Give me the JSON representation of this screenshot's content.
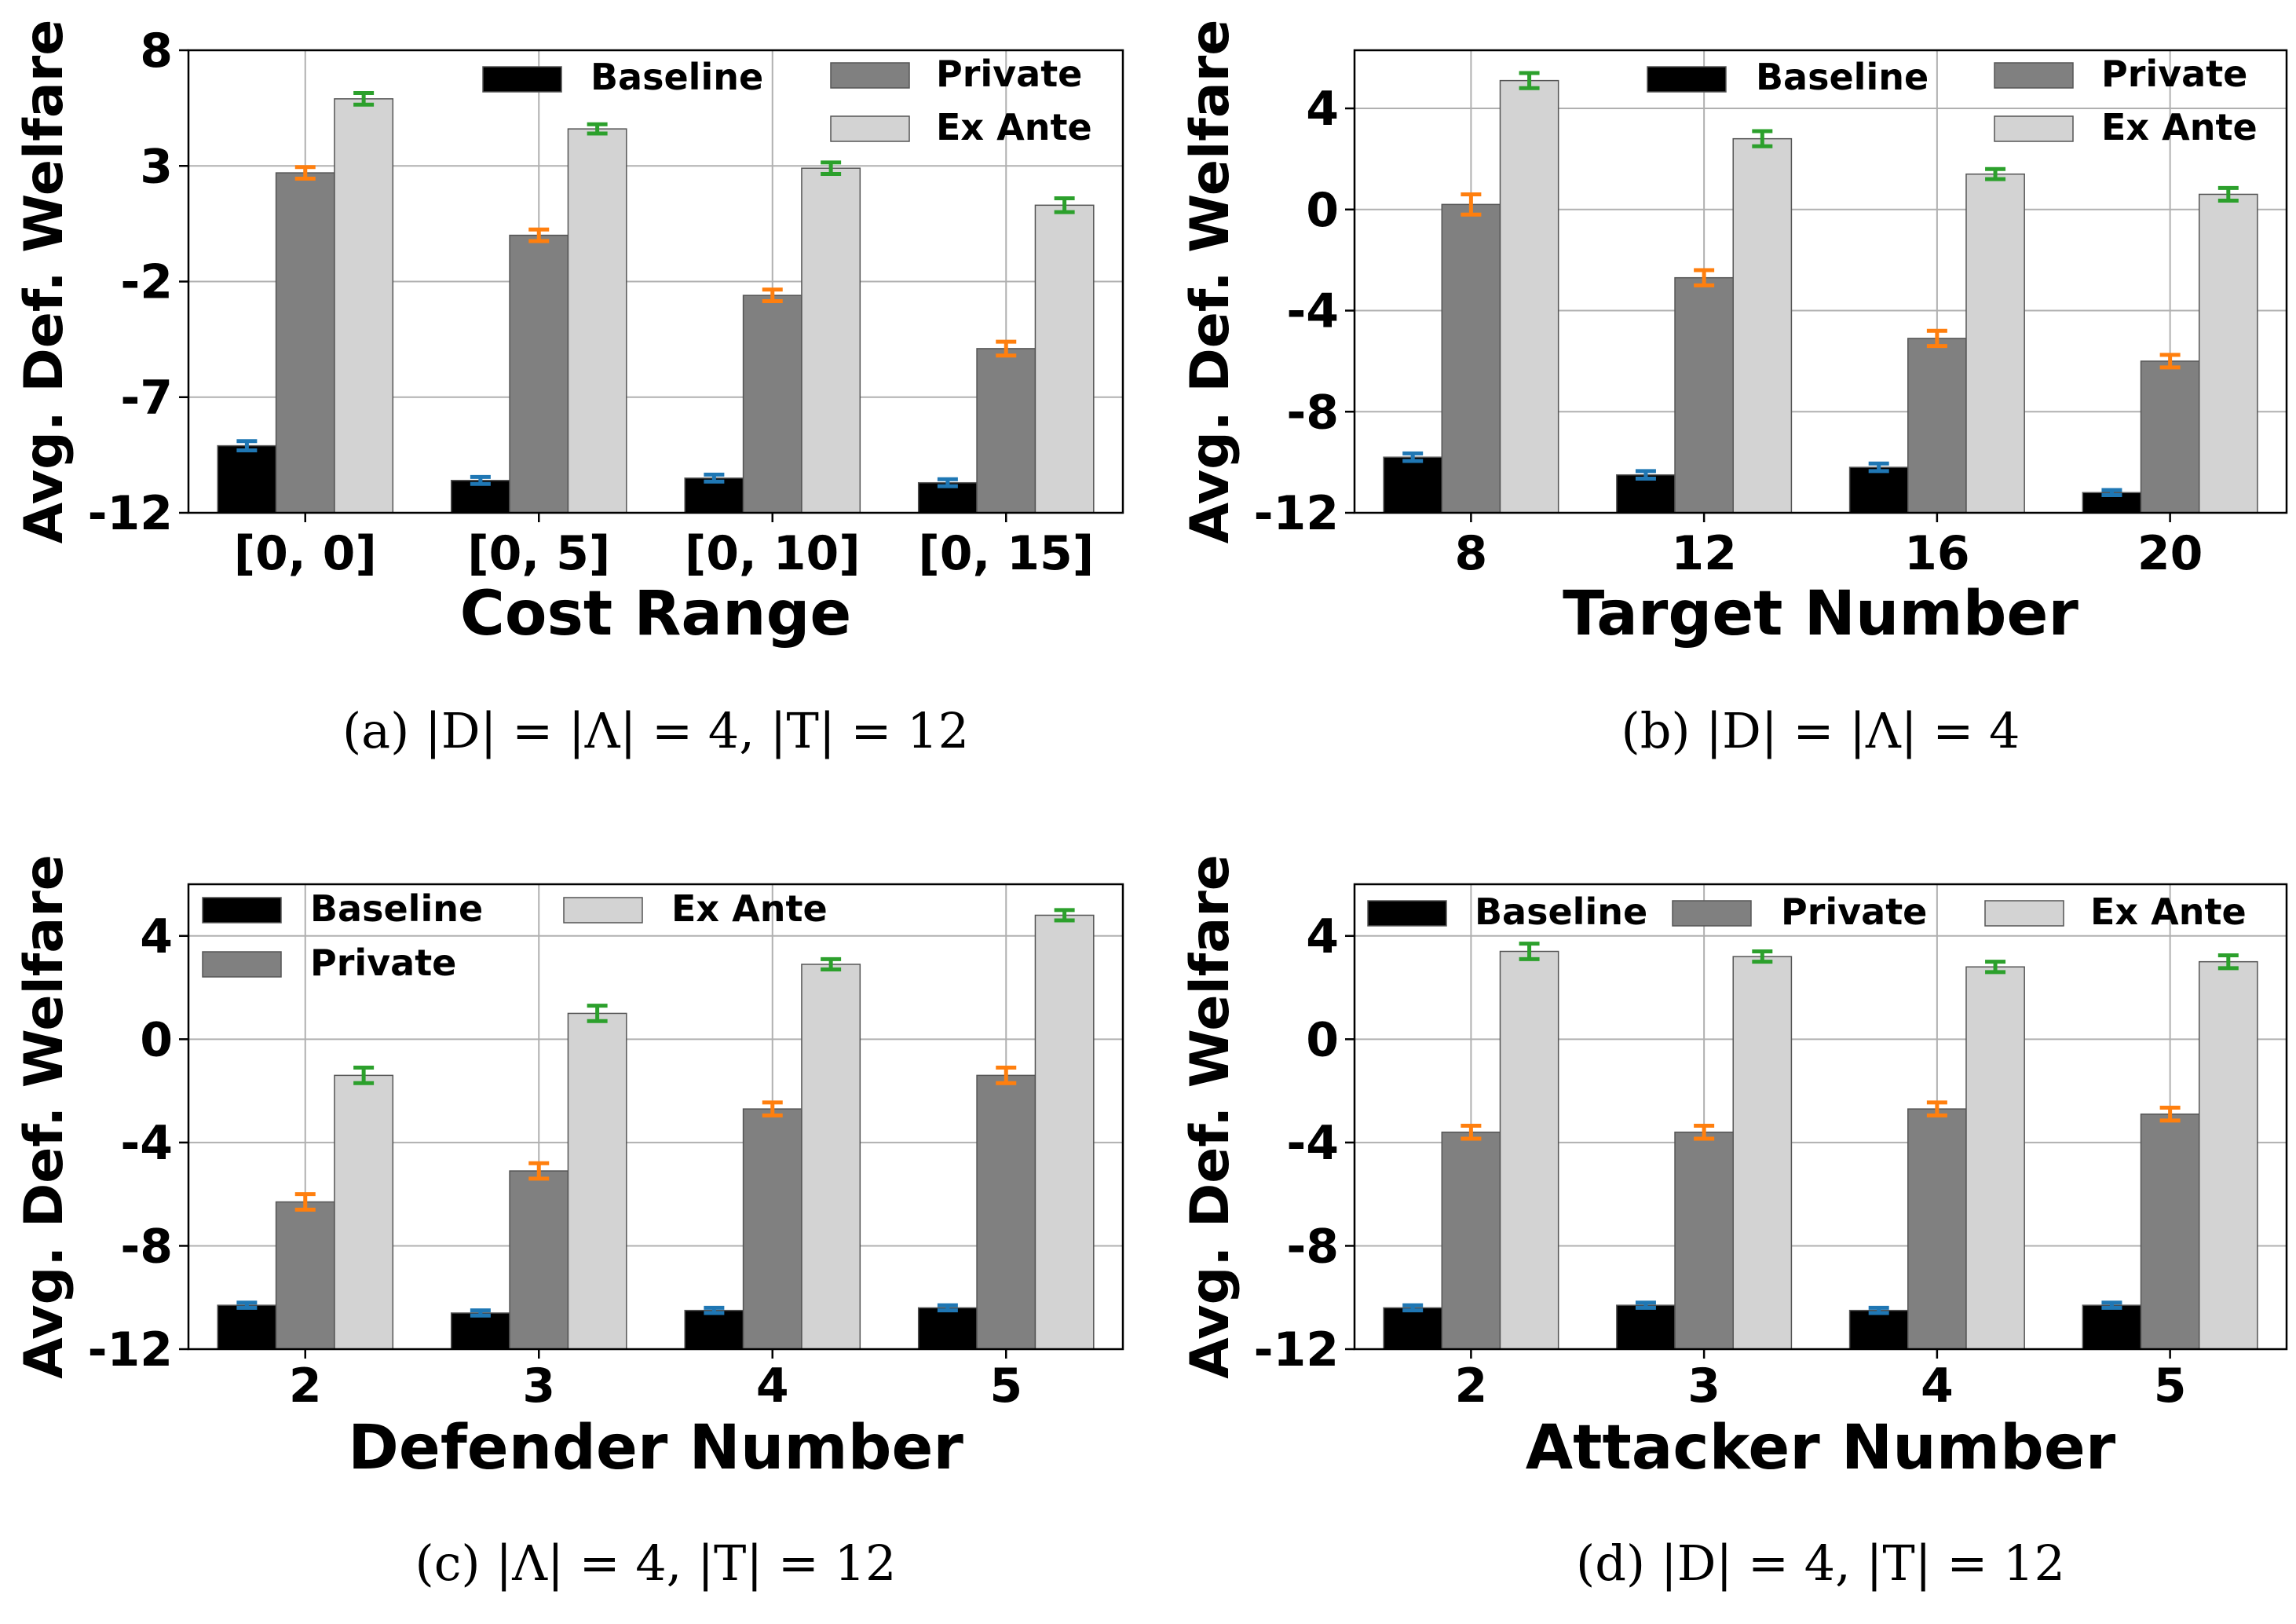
{
  "figure": {
    "colors": {
      "series": [
        "#000000",
        "#808080",
        "#d3d3d3"
      ],
      "errorbars": [
        "#1f77b4",
        "#ff7f0e",
        "#2ca02c"
      ],
      "grid": "#b0b0b0"
    }
  },
  "chart_data": [
    {
      "type": "bar",
      "title": "",
      "xlabel": "Cost Range",
      "ylabel": "Avg. Def. Welfare",
      "caption": "(a) |D| = |Λ| = 4, |T| = 12",
      "categories": [
        "[0, 0]",
        "[0, 5]",
        "[0, 10]",
        "[0, 15]"
      ],
      "ylim": [
        -12,
        8
      ],
      "yticks": [
        8,
        3,
        -2,
        -7,
        -12
      ],
      "grid": true,
      "legend_position": "top-right",
      "series": [
        {
          "name": "Baseline",
          "values": [
            -9.1,
            -10.6,
            -10.5,
            -10.7
          ],
          "errors": [
            0.2,
            0.15,
            0.15,
            0.15
          ]
        },
        {
          "name": "Private",
          "values": [
            2.7,
            0.0,
            -2.6,
            -4.9
          ],
          "errors": [
            0.25,
            0.25,
            0.25,
            0.3
          ]
        },
        {
          "name": "Ex Ante",
          "values": [
            5.9,
            4.6,
            2.9,
            1.3
          ],
          "errors": [
            0.25,
            0.2,
            0.25,
            0.3
          ]
        }
      ]
    },
    {
      "type": "bar",
      "title": "",
      "xlabel": "Target Number",
      "ylabel": "Avg. Def. Welfare",
      "caption": "(b) |D| = |Λ| = 4",
      "categories": [
        "8",
        "12",
        "16",
        "20"
      ],
      "ylim": [
        -12,
        6.3
      ],
      "yticks": [
        4,
        0,
        -4,
        -8,
        -12
      ],
      "grid": true,
      "legend_position": "top-right",
      "series": [
        {
          "name": "Baseline",
          "values": [
            -9.8,
            -10.5,
            -10.2,
            -11.2
          ],
          "errors": [
            0.15,
            0.15,
            0.15,
            0.1
          ]
        },
        {
          "name": "Private",
          "values": [
            0.2,
            -2.7,
            -5.1,
            -6.0
          ],
          "errors": [
            0.4,
            0.3,
            0.3,
            0.25
          ]
        },
        {
          "name": "Ex Ante",
          "values": [
            5.1,
            2.8,
            1.4,
            0.6
          ],
          "errors": [
            0.3,
            0.3,
            0.2,
            0.25
          ]
        }
      ]
    },
    {
      "type": "bar",
      "title": "",
      "xlabel": "Defender Number",
      "ylabel": "Avg. Def. Welfare",
      "caption": "(c) |Λ| = 4, |T| = 12",
      "categories": [
        "2",
        "3",
        "4",
        "5"
      ],
      "ylim": [
        -12,
        6.0
      ],
      "yticks": [
        4,
        0,
        -4,
        -8,
        -12
      ],
      "grid": true,
      "legend_position": "top-left",
      "series": [
        {
          "name": "Baseline",
          "values": [
            -10.3,
            -10.6,
            -10.5,
            -10.4
          ],
          "errors": [
            0.1,
            0.1,
            0.1,
            0.1
          ]
        },
        {
          "name": "Private",
          "values": [
            -6.3,
            -5.1,
            -2.7,
            -1.4
          ],
          "errors": [
            0.3,
            0.3,
            0.25,
            0.3
          ]
        },
        {
          "name": "Ex Ante",
          "values": [
            -1.4,
            1.0,
            2.9,
            4.8
          ],
          "errors": [
            0.3,
            0.3,
            0.2,
            0.2
          ]
        }
      ]
    },
    {
      "type": "bar",
      "title": "",
      "xlabel": "Attacker Number",
      "ylabel": "Avg. Def. Welfare",
      "caption": "(d) |D| = 4, |T| = 12",
      "categories": [
        "2",
        "3",
        "4",
        "5"
      ],
      "ylim": [
        -12,
        6.0
      ],
      "yticks": [
        4,
        0,
        -4,
        -8,
        -12
      ],
      "grid": true,
      "legend_position": "top",
      "series": [
        {
          "name": "Baseline",
          "values": [
            -10.4,
            -10.3,
            -10.5,
            -10.3
          ],
          "errors": [
            0.1,
            0.1,
            0.1,
            0.1
          ]
        },
        {
          "name": "Private",
          "values": [
            -3.6,
            -3.6,
            -2.7,
            -2.9
          ],
          "errors": [
            0.25,
            0.25,
            0.25,
            0.25
          ]
        },
        {
          "name": "Ex Ante",
          "values": [
            3.4,
            3.2,
            2.8,
            3.0
          ],
          "errors": [
            0.3,
            0.2,
            0.2,
            0.25
          ]
        }
      ]
    }
  ]
}
